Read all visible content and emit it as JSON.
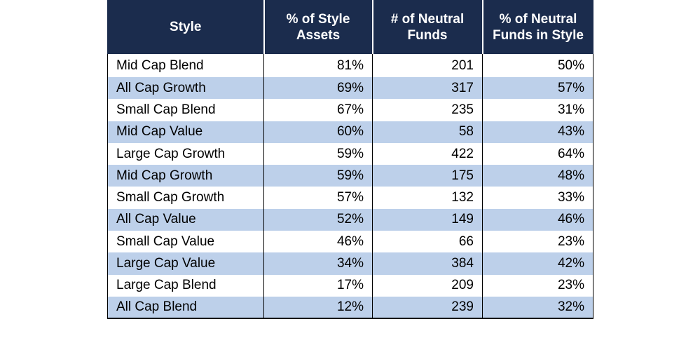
{
  "table": {
    "headers": [
      "Style",
      "% of Style Assets",
      "# of Neutral Funds",
      "% of Neutral Funds in Style"
    ],
    "rows": [
      [
        "Mid Cap Blend",
        "81%",
        "201",
        "50%"
      ],
      [
        "All Cap Growth",
        "69%",
        "317",
        "57%"
      ],
      [
        "Small Cap Blend",
        "67%",
        "235",
        "31%"
      ],
      [
        "Mid Cap Value",
        "60%",
        "58",
        "43%"
      ],
      [
        "Large Cap Growth",
        "59%",
        "422",
        "64%"
      ],
      [
        "Mid Cap Growth",
        "59%",
        "175",
        "48%"
      ],
      [
        "Small Cap Growth",
        "57%",
        "132",
        "33%"
      ],
      [
        "All Cap Value",
        "52%",
        "149",
        "46%"
      ],
      [
        "Small Cap Value",
        "46%",
        "66",
        "23%"
      ],
      [
        "Large Cap Value",
        "34%",
        "384",
        "42%"
      ],
      [
        "Large Cap Blend",
        "17%",
        "209",
        "23%"
      ],
      [
        "All Cap Blend",
        "12%",
        "239",
        "32%"
      ]
    ]
  },
  "colors": {
    "header_bg": "#1b2c4d",
    "header_text": "#ffffff",
    "band_light": "#ffffff",
    "band_blue": "#bdd0ea"
  }
}
